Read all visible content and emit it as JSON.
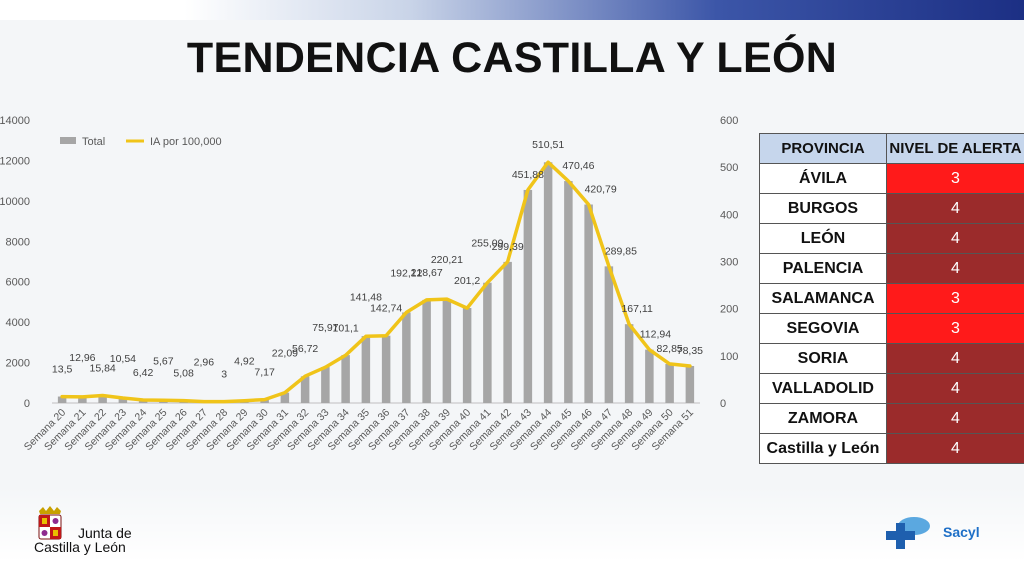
{
  "title": "TENDENCIA CASTILLA Y LEÓN",
  "chart_data": {
    "type": "bar-line",
    "categories": [
      "Semana 20",
      "Semana 21",
      "Semana 22",
      "Semana 23",
      "Semana 24",
      "Semana 25",
      "Semana 26",
      "Semana 27",
      "Semana 28",
      "Semana 29",
      "Semana 30",
      "Semana 31",
      "Semana 32",
      "Semana 33",
      "Semana 34",
      "Semana 35",
      "Semana 36",
      "Semana 37",
      "Semana 38",
      "Semana 39",
      "Semana 40",
      "Semana 41",
      "Semana 42",
      "Semana 43",
      "Semana 44",
      "Semana 45",
      "Semana 46",
      "Semana 47",
      "Semana 48",
      "Semana 49",
      "Semana 50",
      "Semana 51"
    ],
    "series": [
      {
        "name": "Total",
        "type": "bar",
        "axis": "left",
        "color": "#a6a6a6",
        "values": [
          320,
          310,
          370,
          220,
          150,
          130,
          120,
          70,
          70,
          115,
          170,
          510,
          1320,
          1780,
          2370,
          3310,
          3330,
          4480,
          5100,
          5140,
          4700,
          5950,
          6980,
          10540,
          11910,
          10980,
          9820,
          6760,
          3900,
          2640,
          1930,
          1830
        ]
      },
      {
        "name": "IA por 100,000",
        "type": "line",
        "axis": "right",
        "color": "#f0c419",
        "values": [
          13.5,
          12.96,
          15.84,
          10.54,
          6.42,
          5.67,
          5.08,
          2.96,
          3,
          4.92,
          7.17,
          22.09,
          56.72,
          75.97,
          101.1,
          141.48,
          142.74,
          192.12,
          218.67,
          220.21,
          201.2,
          255.09,
          299.39,
          451.88,
          510.51,
          470.46,
          420.79,
          289.85,
          167.11,
          112.94,
          82.85,
          78.35
        ],
        "labels": [
          "13,5",
          "12,96",
          "15,84",
          "10,54",
          "6,42",
          "5,67",
          "5,08",
          "2,96",
          "3",
          "4,92",
          "7,17",
          "22,09",
          "56,72",
          "75,97",
          "101,1",
          "141,48",
          "142,74",
          "192,12",
          "218,67",
          "220,21",
          "201,2",
          "255,09",
          "299,39",
          "451,88",
          "510,51",
          "470,46",
          "420,79",
          "289,85",
          "167,11",
          "112,94",
          "82,85",
          "78,35"
        ]
      }
    ],
    "y_left": {
      "min": 0,
      "max": 14000,
      "ticks": [
        0,
        2000,
        4000,
        6000,
        8000,
        10000,
        12000,
        14000
      ]
    },
    "y_right": {
      "min": 0,
      "max": 600,
      "ticks": [
        0,
        100,
        200,
        300,
        400,
        500,
        600
      ]
    },
    "legend_position": "top-left",
    "grid": false
  },
  "alert_table": {
    "headers": [
      "PROVINCIA",
      "NIVEL DE ALERTA"
    ],
    "rows": [
      {
        "provincia": "ÁVILA",
        "nivel": "3",
        "color": "#ff1a1a"
      },
      {
        "provincia": "BURGOS",
        "nivel": "4",
        "color": "#9b2b2b"
      },
      {
        "provincia": "LEÓN",
        "nivel": "4",
        "color": "#9b2b2b"
      },
      {
        "provincia": "PALENCIA",
        "nivel": "4",
        "color": "#9b2b2b"
      },
      {
        "provincia": "SALAMANCA",
        "nivel": "3",
        "color": "#ff1a1a"
      },
      {
        "provincia": "SEGOVIA",
        "nivel": "3",
        "color": "#ff1a1a"
      },
      {
        "provincia": "SORIA",
        "nivel": "4",
        "color": "#9b2b2b"
      },
      {
        "provincia": "VALLADOLID",
        "nivel": "4",
        "color": "#9b2b2b"
      },
      {
        "provincia": "ZAMORA",
        "nivel": "4",
        "color": "#9b2b2b"
      },
      {
        "provincia": "Castilla y León",
        "nivel": "4",
        "color": "#9b2b2b"
      }
    ]
  },
  "logos": {
    "junta_line1": "Junta de",
    "junta_line2": "Castilla y León",
    "sacyl": "Sacyl"
  }
}
